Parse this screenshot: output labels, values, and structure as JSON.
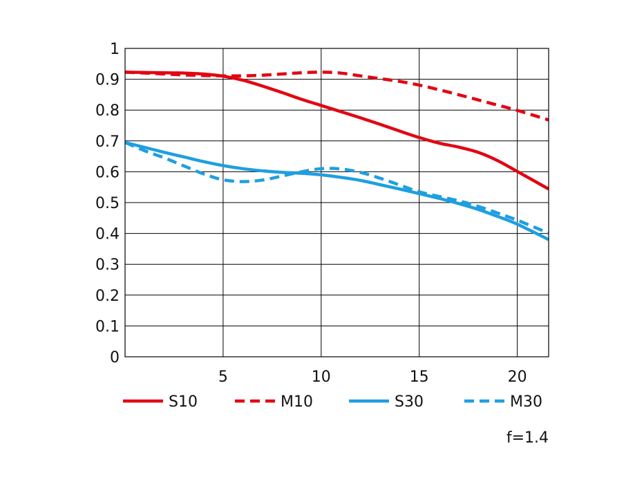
{
  "chart_data": {
    "type": "line",
    "x": [
      0,
      1,
      2,
      3,
      4,
      5,
      6,
      7,
      8,
      9,
      10,
      11,
      12,
      13,
      14,
      15,
      16,
      17,
      18,
      19,
      20,
      21.6
    ],
    "series": [
      {
        "name": "S10",
        "color": "#e30613",
        "dash": "solid",
        "values": [
          0.923,
          0.922,
          0.921,
          0.92,
          0.917,
          0.91,
          0.897,
          0.878,
          0.857,
          0.835,
          0.815,
          0.795,
          0.775,
          0.754,
          0.732,
          0.711,
          0.693,
          0.68,
          0.663,
          0.636,
          0.601,
          0.544
        ]
      },
      {
        "name": "M10",
        "color": "#e30613",
        "dash": "dashed",
        "values": [
          0.923,
          0.92,
          0.917,
          0.914,
          0.912,
          0.911,
          0.911,
          0.913,
          0.917,
          0.921,
          0.923,
          0.92,
          0.911,
          0.902,
          0.893,
          0.881,
          0.866,
          0.85,
          0.833,
          0.816,
          0.799,
          0.768
        ]
      },
      {
        "name": "S30",
        "color": "#1e9fe0",
        "dash": "solid",
        "values": [
          0.695,
          0.679,
          0.663,
          0.648,
          0.633,
          0.62,
          0.61,
          0.603,
          0.598,
          0.595,
          0.59,
          0.582,
          0.572,
          0.558,
          0.544,
          0.529,
          0.514,
          0.497,
          0.478,
          0.455,
          0.43,
          0.38
        ]
      },
      {
        "name": "M30",
        "color": "#1e9fe0",
        "dash": "dashed",
        "values": [
          0.695,
          0.668,
          0.645,
          0.619,
          0.593,
          0.574,
          0.568,
          0.573,
          0.586,
          0.6,
          0.61,
          0.609,
          0.598,
          0.579,
          0.557,
          0.535,
          0.52,
          0.506,
          0.488,
          0.466,
          0.443,
          0.401
        ]
      }
    ],
    "xlim": [
      0,
      21.6
    ],
    "ylim": [
      0,
      1
    ],
    "x_ticks": [
      5,
      10,
      15,
      20
    ],
    "y_ticks": [
      0,
      0.1,
      0.2,
      0.3,
      0.4,
      0.5,
      0.6,
      0.7,
      0.8,
      0.9,
      1
    ],
    "x_tick_labels": [
      "5",
      "10",
      "15",
      "20"
    ],
    "y_tick_labels": [
      "0",
      "0.1",
      "0.2",
      "0.3",
      "0.4",
      "0.5",
      "0.6",
      "0.7",
      "0.8",
      "0.9",
      "1"
    ],
    "grid": true,
    "legend_position": "bottom",
    "annotation": "f=1.4",
    "title": "",
    "xlabel": "",
    "ylabel": ""
  }
}
